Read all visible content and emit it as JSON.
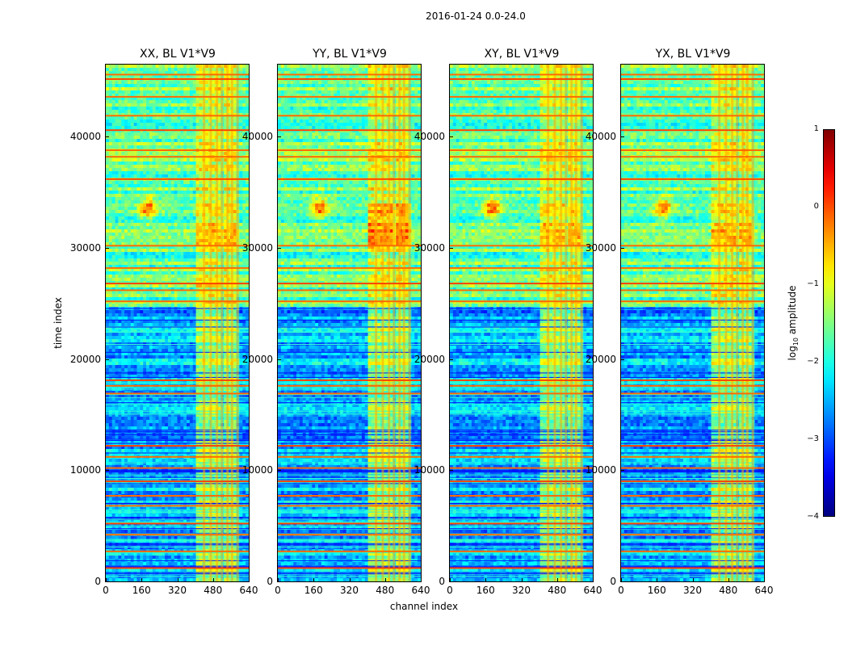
{
  "figure": {
    "suptitle": "2016-01-24 0.0-24.0",
    "xlabel": "channel index",
    "ylabel": "time index"
  },
  "panels": [
    {
      "title": "XX, BL V1*V9"
    },
    {
      "title": "YY, BL V1*V9"
    },
    {
      "title": "XY, BL V1*V9"
    },
    {
      "title": "YX, BL V1*V9"
    }
  ],
  "colorbar": {
    "label_main": "log",
    "label_sub": "10",
    "label_rest": " amplitude",
    "range": [
      -4,
      1
    ],
    "ticks": [
      "1",
      "0",
      "−1",
      "−2",
      "−3",
      "−4"
    ],
    "colormap": "jet"
  },
  "chart_data": {
    "type": "heatmap",
    "title": "2016-01-24 0.0-24.0",
    "xlabel": "channel index",
    "ylabel": "time index",
    "xlim": [
      0,
      640
    ],
    "ylim": [
      0,
      46500
    ],
    "xticks": [
      "0",
      "160",
      "320",
      "480",
      "640"
    ],
    "yticks": [
      "0",
      "10000",
      "20000",
      "30000",
      "40000"
    ],
    "panels": [
      "XX, BL V1*V9",
      "YY, BL V1*V9",
      "XY, BL V1*V9",
      "YX, BL V1*V9"
    ],
    "colorbar_label": "log10 amplitude",
    "value_range": [
      -4,
      1
    ],
    "features": {
      "bright_channel_band": [
        400,
        600
      ],
      "bright_rows": [
        1200,
        2700,
        4200,
        5200,
        6800,
        7700,
        9000,
        10200,
        11200,
        12200,
        16900,
        17600,
        18100,
        25200,
        26200,
        26800,
        28200,
        30200,
        36200,
        38200,
        38800,
        40600,
        41900,
        43600,
        45200,
        45600
      ],
      "quiet_time_ranges": [
        [
          0,
          24800
        ]
      ],
      "noisy_time_ranges": [
        [
          24800,
          46500
        ]
      ],
      "feature_point": {
        "channel": 190,
        "time": 33600
      }
    }
  }
}
